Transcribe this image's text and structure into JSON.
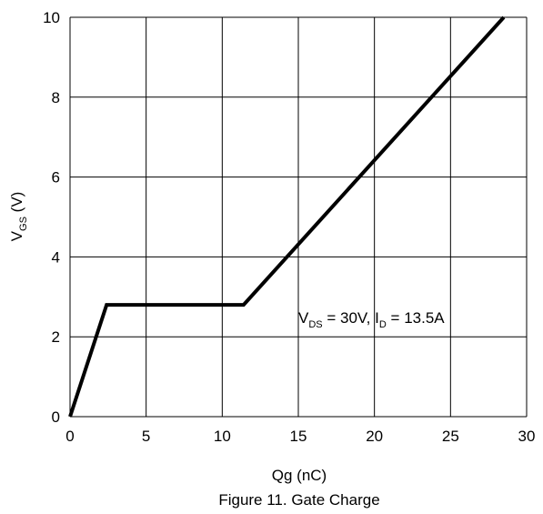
{
  "chart_data": {
    "type": "line",
    "title": "Figure 11. Gate Charge",
    "xlabel": "Qg (nC)",
    "ylabel": {
      "main": "V",
      "sub": "GS",
      "rest": " (V)"
    },
    "xlim": [
      0,
      30
    ],
    "ylim": [
      0,
      10
    ],
    "xticks": [
      0,
      5,
      10,
      15,
      20,
      25,
      30
    ],
    "yticks": [
      0,
      2,
      4,
      6,
      8,
      10
    ],
    "grid": true,
    "annotation": {
      "v": "V",
      "v_sub": "DS",
      "v_rest": " = 30V, ",
      "i": "I",
      "i_sub": "D",
      "i_rest": " = 13.5A",
      "x": 15,
      "y": 2.8
    },
    "series": [
      {
        "x": [
          0,
          2.4,
          11.4,
          28.5
        ],
        "y": [
          0,
          2.8,
          2.8,
          10
        ]
      }
    ]
  }
}
